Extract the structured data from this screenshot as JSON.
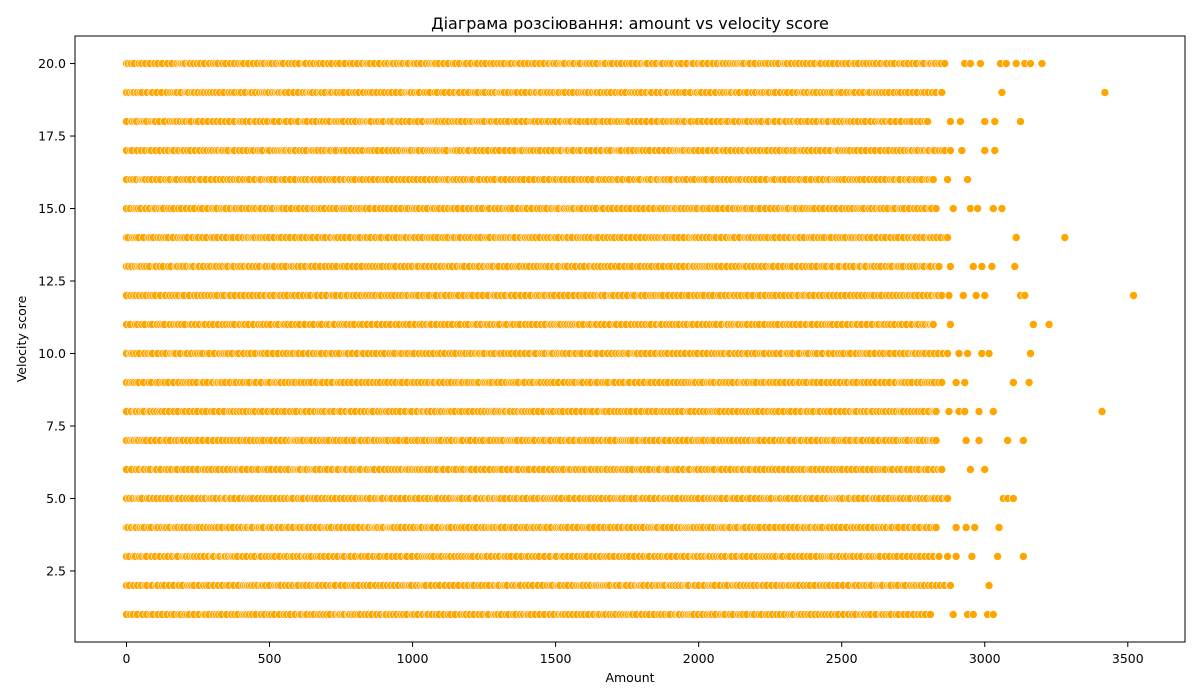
{
  "chart_data": {
    "type": "scatter",
    "title": "Діаграма розсіювання: amount vs velocity score",
    "xlabel": "Amount",
    "ylabel": "Velocity score",
    "xlim": [
      -180,
      3700
    ],
    "ylim": [
      0.05,
      20.95
    ],
    "x_ticks": [
      0,
      500,
      1000,
      1500,
      2000,
      2500,
      3000,
      3500
    ],
    "x_tick_labels": [
      "0",
      "500",
      "1000",
      "1500",
      "2000",
      "2500",
      "3000",
      "3500"
    ],
    "y_ticks": [
      2.5,
      5.0,
      7.5,
      10.0,
      12.5,
      15.0,
      17.5,
      20.0
    ],
    "y_tick_labels": [
      "2.5",
      "5.0",
      "7.5",
      "10.0",
      "12.5",
      "15.0",
      "17.5",
      "20.0"
    ],
    "grid": false,
    "marker_color": "#FFA500",
    "marker_edge_color": "#ffffff",
    "dense_band": {
      "y_levels": [
        1,
        2,
        3,
        4,
        5,
        6,
        7,
        8,
        9,
        10,
        11,
        12,
        13,
        14,
        15,
        16,
        17,
        18,
        19,
        20
      ],
      "x_start": 0,
      "x_end_by_level": [
        2810,
        2880,
        2840,
        2830,
        2870,
        2850,
        2830,
        2830,
        2850,
        2870,
        2820,
        2850,
        2840,
        2870,
        2830,
        2820,
        2860,
        2800,
        2850,
        2860
      ]
    },
    "outliers": [
      {
        "x": 2890,
        "y": 1
      },
      {
        "x": 2940,
        "y": 1
      },
      {
        "x": 2960,
        "y": 1
      },
      {
        "x": 3010,
        "y": 1
      },
      {
        "x": 3030,
        "y": 1
      },
      {
        "x": 3015,
        "y": 2
      },
      {
        "x": 2870,
        "y": 3
      },
      {
        "x": 2900,
        "y": 3
      },
      {
        "x": 2955,
        "y": 3
      },
      {
        "x": 3045,
        "y": 3
      },
      {
        "x": 3135,
        "y": 3
      },
      {
        "x": 2900,
        "y": 4
      },
      {
        "x": 2935,
        "y": 4
      },
      {
        "x": 2965,
        "y": 4
      },
      {
        "x": 3050,
        "y": 4
      },
      {
        "x": 3065,
        "y": 5
      },
      {
        "x": 3080,
        "y": 5
      },
      {
        "x": 3100,
        "y": 5
      },
      {
        "x": 2950,
        "y": 6
      },
      {
        "x": 3000,
        "y": 6
      },
      {
        "x": 2935,
        "y": 7
      },
      {
        "x": 2980,
        "y": 7
      },
      {
        "x": 3080,
        "y": 7
      },
      {
        "x": 3135,
        "y": 7
      },
      {
        "x": 2875,
        "y": 8
      },
      {
        "x": 2910,
        "y": 8
      },
      {
        "x": 2930,
        "y": 8
      },
      {
        "x": 2980,
        "y": 8
      },
      {
        "x": 3030,
        "y": 8
      },
      {
        "x": 3410,
        "y": 8
      },
      {
        "x": 2900,
        "y": 9
      },
      {
        "x": 2930,
        "y": 9
      },
      {
        "x": 3100,
        "y": 9
      },
      {
        "x": 3155,
        "y": 9
      },
      {
        "x": 2910,
        "y": 10
      },
      {
        "x": 2940,
        "y": 10
      },
      {
        "x": 2990,
        "y": 10
      },
      {
        "x": 3015,
        "y": 10
      },
      {
        "x": 3160,
        "y": 10
      },
      {
        "x": 2880,
        "y": 11
      },
      {
        "x": 3170,
        "y": 11
      },
      {
        "x": 3225,
        "y": 11
      },
      {
        "x": 2875,
        "y": 12
      },
      {
        "x": 2925,
        "y": 12
      },
      {
        "x": 2970,
        "y": 12
      },
      {
        "x": 3000,
        "y": 12
      },
      {
        "x": 3125,
        "y": 12
      },
      {
        "x": 3140,
        "y": 12
      },
      {
        "x": 3520,
        "y": 12
      },
      {
        "x": 2880,
        "y": 13
      },
      {
        "x": 2960,
        "y": 13
      },
      {
        "x": 2990,
        "y": 13
      },
      {
        "x": 3025,
        "y": 13
      },
      {
        "x": 3105,
        "y": 13
      },
      {
        "x": 3110,
        "y": 14
      },
      {
        "x": 3280,
        "y": 14
      },
      {
        "x": 2890,
        "y": 15
      },
      {
        "x": 2950,
        "y": 15
      },
      {
        "x": 2975,
        "y": 15
      },
      {
        "x": 3030,
        "y": 15
      },
      {
        "x": 3060,
        "y": 15
      },
      {
        "x": 2870,
        "y": 16
      },
      {
        "x": 2940,
        "y": 16
      },
      {
        "x": 2880,
        "y": 17
      },
      {
        "x": 2920,
        "y": 17
      },
      {
        "x": 3000,
        "y": 17
      },
      {
        "x": 3035,
        "y": 17
      },
      {
        "x": 2880,
        "y": 18
      },
      {
        "x": 2915,
        "y": 18
      },
      {
        "x": 3000,
        "y": 18
      },
      {
        "x": 3035,
        "y": 18
      },
      {
        "x": 3125,
        "y": 18
      },
      {
        "x": 3060,
        "y": 19
      },
      {
        "x": 3420,
        "y": 19
      },
      {
        "x": 2930,
        "y": 20
      },
      {
        "x": 2950,
        "y": 20
      },
      {
        "x": 2985,
        "y": 20
      },
      {
        "x": 3055,
        "y": 20
      },
      {
        "x": 3075,
        "y": 20
      },
      {
        "x": 3110,
        "y": 20
      },
      {
        "x": 3140,
        "y": 20
      },
      {
        "x": 3160,
        "y": 20
      },
      {
        "x": 3200,
        "y": 20
      }
    ]
  }
}
